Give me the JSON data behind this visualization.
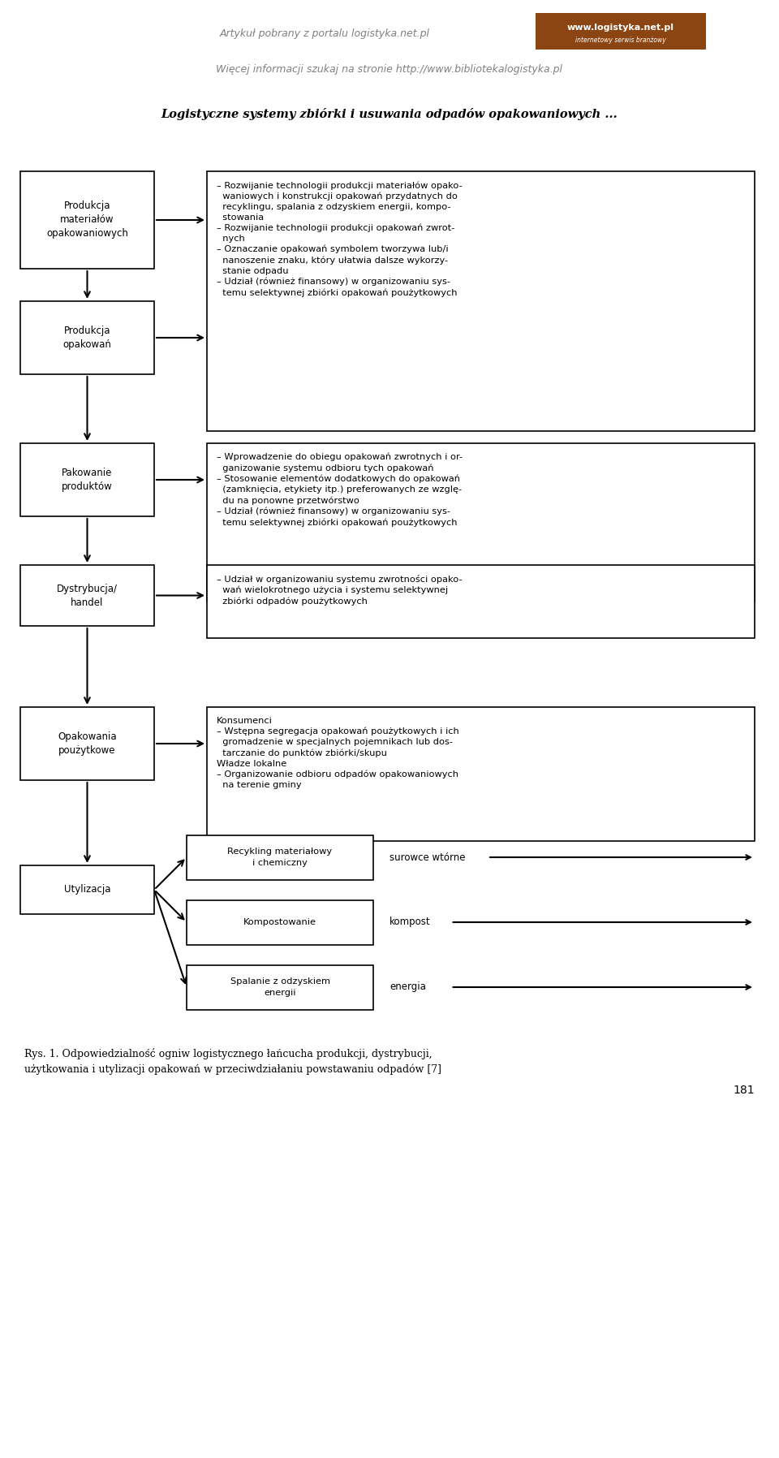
{
  "page_title1": "Artykuł pobrany z portalu logistyka.net.pl",
  "page_title2": "Więcej informacji szukaj na stronie http://www.bibliotekalogistyka.pl",
  "main_title": "Logistyczne systemy zbiórki i usuwania odpadów opakowaniowych ...",
  "left_boxes": [
    "Produkcja\nmateriałów\nopakowaniowych",
    "Produkcja\nopakowań",
    "Pakowanie\nproduktów",
    "Dystrybucja/\nhandel",
    "Opakowania\npoużytkowe",
    "Utylizacja"
  ],
  "right_boxes": [
    "– Rozwijanie technologii produkcji materiałów opako-\n  waniowych i konstrukcji opakowań przydatnych do\n  recyklingu, spalania z odzyskiem energii, kompo-\n  stowania\n– Rozwijanie technologii produkcji opakowań zwrot-\n  nych\n– Oznaczanie opakowań symbolem tworzywa lub/i\n  nanoszenie znaku, który ułatwia dalsze wykorzy-\n  stanie odpadu\n– Udział (również finansowy) w organizowaniu sys-\n  temu selektywnej zbiórki opakowań poużytkowych",
    "– Wprowadzenie do obiegu opakowań zwrotnych i or-\n  ganizowanie systemu odbioru tych opakowań\n– Stosowanie elementów dodatkowych do opakowań\n  (zamknięcia, etykiety itp.) preferowanych ze wzglę-\n  du na ponowne przetwórstwo\n– Udział (również finansowy) w organizowaniu sys-\n  temu selektywnej zbiórki opakowań poużytkowych",
    "– Udział w organizowaniu systemu zwrotności opako-\n  wań wielokrotnego użycia i systemu selektywnej\n  zbiórki odpadów poużytkowych",
    "Konsumenci\n– Wstępna segregacja opakowań poużytkowych i ich\n  gromadzenie w specjalnych pojemnikach lub dos-\n  tarczanie do punktów zbiórki/skupu\nWładze lokalne\n– Organizowanie odbioru odpadów opakowaniowych\n  na terenie gminy"
  ],
  "bottom_boxes": [
    "Recykling materiałowy\ni chemiczny",
    "Kompostowanie",
    "Spalanie z odzyskiem\nenergii"
  ],
  "bottom_labels": [
    "surowce wtórne",
    "kompost",
    "energia"
  ],
  "caption": "Rys. 1. Odpowiedzialność ogniw logistycznego łańcucha produkcji, dystrybucji,\nużytkowania i utylizacji opakowań w przeciwdziałaniu powstawaniu odpadów [7]",
  "page_number": "181",
  "bg_color": "#ffffff",
  "box_color": "#ffffff",
  "box_border": "#000000",
  "text_color": "#000000",
  "header_color": "#808080",
  "title_color": "#000000"
}
